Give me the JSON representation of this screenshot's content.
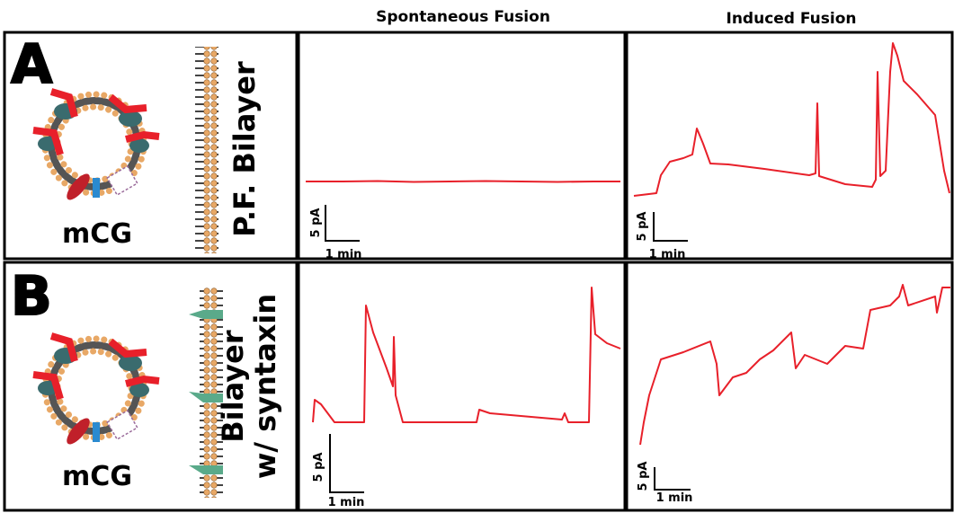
{
  "headers": [
    "Spontaneous Fusion",
    "Induced Fusion"
  ],
  "rows": [
    {
      "label": "A",
      "vesicle": "mCG",
      "bilayer": [
        "P.F. Bilayer"
      ],
      "scale_bars": [
        {
          "y": "5 pA",
          "x": "1 min"
        },
        {
          "y": "5 pA",
          "x": "1 min"
        }
      ]
    },
    {
      "label": "B",
      "vesicle": "mCG",
      "bilayer": [
        "Bilayer",
        "w/ syntaxin"
      ],
      "scale_bars": [
        {
          "y": "5 pA",
          "x": "1 min"
        },
        {
          "y": "5 pA",
          "x": "1 min"
        }
      ]
    }
  ]
}
